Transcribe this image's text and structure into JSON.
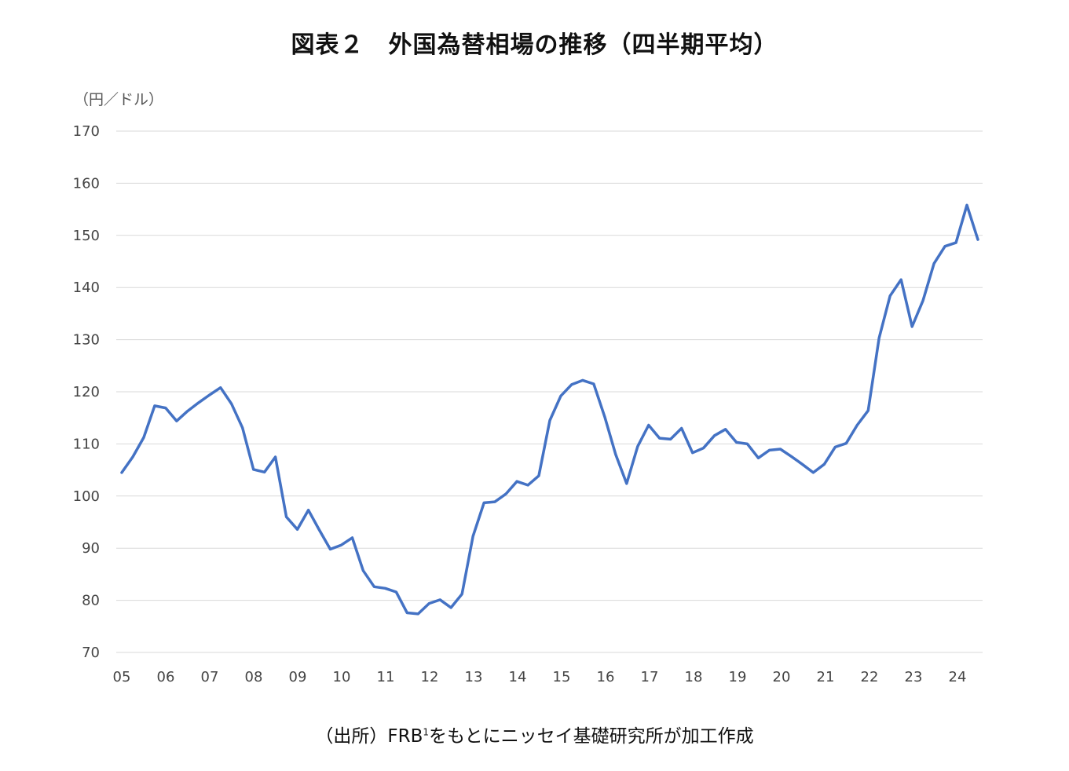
{
  "chart_data": {
    "type": "line",
    "title": "図表２　外国為替相場の推移（四半期平均）",
    "ylabel": "（円／ドル）",
    "xlabel": "",
    "ylim": [
      70,
      170
    ],
    "yticks": [
      70,
      80,
      90,
      100,
      110,
      120,
      130,
      140,
      150,
      160,
      170
    ],
    "xtick_labels": [
      "05",
      "06",
      "07",
      "08",
      "09",
      "10",
      "11",
      "12",
      "13",
      "14",
      "15",
      "16",
      "17",
      "18",
      "19",
      "20",
      "21",
      "22",
      "23",
      "24"
    ],
    "grid": true,
    "legend": "none",
    "color": "#4472C4",
    "series": [
      {
        "values": [
          104.5,
          107.5,
          111.2,
          117.3,
          116.9,
          114.4,
          116.3,
          117.9,
          119.4,
          120.8,
          117.7,
          113.1,
          105.1,
          104.6,
          107.5,
          96.0,
          93.6,
          97.3,
          93.5,
          89.8,
          90.6,
          92.0,
          85.7,
          82.6,
          82.3,
          81.6,
          77.6,
          77.4,
          79.4,
          80.1,
          78.6,
          81.2,
          92.3,
          98.7,
          98.9,
          100.4,
          102.8,
          102.1,
          103.9,
          114.5,
          119.2,
          121.4,
          122.2,
          121.5,
          115.2,
          108.0,
          102.4,
          109.5,
          113.6,
          111.1,
          110.9,
          113.0,
          108.3,
          109.2,
          111.6,
          112.8,
          110.3,
          110.0,
          107.3,
          108.8,
          109.0,
          107.6,
          106.1,
          104.5,
          106.1,
          109.4,
          110.1,
          113.6,
          116.4,
          130.3,
          138.4,
          141.5,
          132.5,
          137.5,
          144.6,
          147.9,
          148.6,
          155.8,
          149.2
        ]
      }
    ]
  },
  "source_note": {
    "prefix": "（出所）FRB",
    "superscript": "1",
    "suffix": "をもとにニッセイ基礎研究所が加工作成"
  }
}
